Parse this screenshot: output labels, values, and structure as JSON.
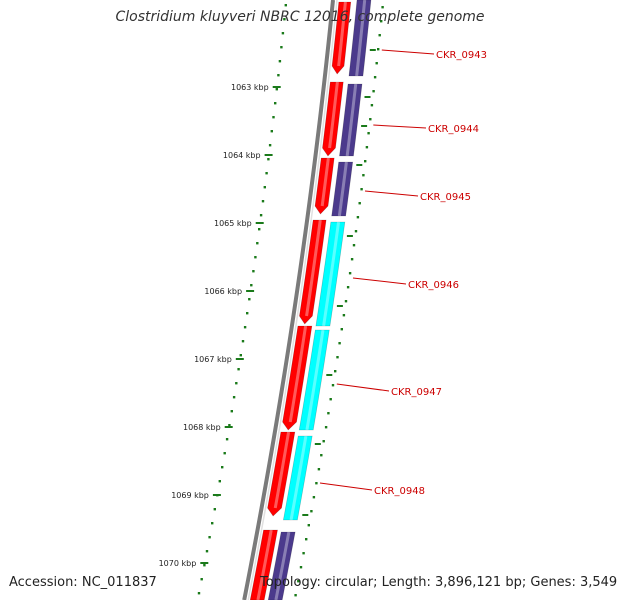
{
  "title": "Clostridium kluyveri NBRC 12016, complete genome",
  "footer": {
    "accession_label": "Accession:",
    "accession": "NC_011837",
    "topology_label": "Topology:",
    "topology": "circular",
    "length_label": "Length:",
    "length": "3,896,121 bp",
    "genes_label": "Genes:",
    "genes": "3,549"
  },
  "colors": {
    "backbone": "#7a7a7a",
    "forward_gene": "#ff0000",
    "reverse_gene": "#4b3a8c",
    "rna_gene": "#00ffff",
    "gene_label": "#cc0000",
    "tick": "#1a7a1a"
  },
  "ticks": [
    "1063 kbp",
    "1064 kbp",
    "1065 kbp",
    "1066 kbp",
    "1067 kbp",
    "1068 kbp",
    "1069 kbp",
    "1070 kbp"
  ],
  "genes": [
    {
      "label": "CKR_0943"
    },
    {
      "label": "CKR_0944"
    },
    {
      "label": "CKR_0945"
    },
    {
      "label": "CKR_0946"
    },
    {
      "label": "CKR_0947"
    },
    {
      "label": "CKR_0948"
    }
  ]
}
